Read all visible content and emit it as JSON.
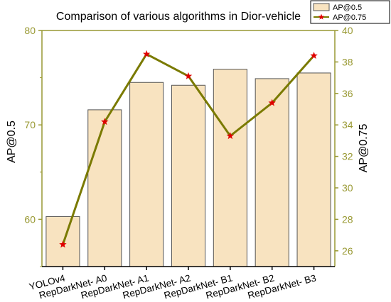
{
  "chart_data": {
    "type": "bar",
    "title": "Comparison of various algorithms in Dior-vehicle",
    "categories": [
      "YOLOv4",
      "RepDarkNet- A0",
      "RepDarkNet- A1",
      "RepDarkNet- A2",
      "RepDarkNet- B1",
      "RepDarkNet- B2",
      "RepDarkNet- B3"
    ],
    "series": [
      {
        "name": "AP@0.5",
        "kind": "bar",
        "axis": "left",
        "color": "#F8E3C0",
        "edge": "#555555",
        "values": [
          60.3,
          71.6,
          74.5,
          74.2,
          75.9,
          74.9,
          75.5
        ]
      },
      {
        "name": "AP@0.75",
        "kind": "line",
        "axis": "right",
        "color": "#7A7A00",
        "marker": "star",
        "marker_color": "#E00000",
        "values": [
          26.4,
          34.2,
          38.5,
          37.1,
          33.3,
          35.4,
          38.4
        ]
      }
    ],
    "ylabel": "AP@0.5",
    "ylabel_right": "AP@0.75",
    "ylim": [
      55,
      80
    ],
    "ylim_right": [
      25,
      40
    ],
    "yticks": [
      60,
      70,
      80
    ],
    "yticks_right": [
      26,
      28,
      30,
      32,
      34,
      36,
      38,
      40
    ],
    "axis_color": "#999933",
    "legend_position": "top-right",
    "grid": false
  }
}
